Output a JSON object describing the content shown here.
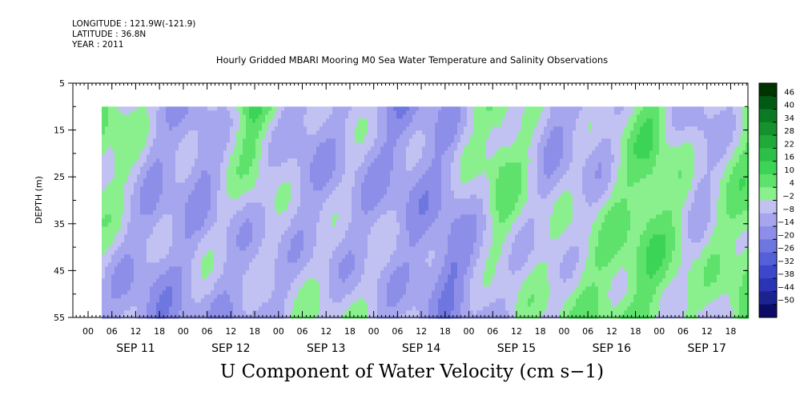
{
  "header": {
    "longitude": "LONGITUDE : 121.9W(-121.9)",
    "latitude": "LATITUDE : 36.8N",
    "year": "YEAR : 2011"
  },
  "chart_data": {
    "type": "heatmap",
    "title": "Hourly Gridded MBARI Mooring M0 Sea Water Temperature and Salinity Observations",
    "variable_title": "U Component of Water Velocity (cm s−1)",
    "ylabel": "DEPTH (m)",
    "ylim": [
      5,
      55
    ],
    "y_inverted": true,
    "y_ticks": [
      "5",
      "15",
      "25",
      "35",
      "45",
      "55"
    ],
    "data_depth_range": [
      10,
      55
    ],
    "x_hour_ticks": [
      "00",
      "06",
      "12",
      "18",
      "00",
      "06",
      "12",
      "18",
      "00",
      "06",
      "12",
      "18",
      "00",
      "06",
      "12",
      "18",
      "00",
      "06",
      "12",
      "18",
      "00",
      "06",
      "12",
      "18",
      "00",
      "06",
      "12",
      "18"
    ],
    "x_day_labels": [
      "SEP 11",
      "SEP 12",
      "SEP 13",
      "SEP 14",
      "SEP 15",
      "SEP 16",
      "SEP 17"
    ],
    "colorbar_levels": [
      "46",
      "40",
      "34",
      "28",
      "22",
      "16",
      "10",
      "4",
      "−2",
      "−8",
      "−14",
      "−20",
      "−26",
      "−32",
      "−38",
      "−44",
      "−50"
    ],
    "colorbar_colors": [
      "#003300",
      "#005a14",
      "#0a7a24",
      "#15922e",
      "#20aa3a",
      "#2cc048",
      "#3cd456",
      "#5ee26c",
      "#8af08e",
      "#c2c2f2",
      "#a6a6ee",
      "#8c8ee8",
      "#6f76e0",
      "#5560d8",
      "#3c48cc",
      "#2a34b4",
      "#1c2290",
      "#0c0c66"
    ],
    "u_velocity_samples_cm_s": {
      "depths_m": [
        10,
        20,
        30,
        40,
        50
      ],
      "days": [
        "SEP 11 00",
        "SEP 11 12",
        "SEP 12 00",
        "SEP 12 12",
        "SEP 13 00",
        "SEP 13 12",
        "SEP 14 00",
        "SEP 14 12",
        "SEP 15 00",
        "SEP 15 12",
        "SEP 16 00",
        "SEP 16 12",
        "SEP 17 00",
        "SEP 17 12"
      ],
      "values": [
        [
          6,
          -8,
          -12,
          10,
          -14,
          -6,
          -16,
          -10,
          4,
          -12,
          -10,
          6,
          -12,
          2
        ],
        [
          4,
          -10,
          -14,
          2,
          -12,
          -8,
          -14,
          -12,
          6,
          -10,
          -8,
          8,
          -10,
          4
        ],
        [
          -2,
          -12,
          -10,
          -6,
          -10,
          -10,
          -12,
          -14,
          2,
          -8,
          -2,
          8,
          -6,
          6
        ],
        [
          -6,
          -14,
          -8,
          -10,
          -6,
          -8,
          -10,
          -20,
          -4,
          -4,
          2,
          6,
          -4,
          6
        ],
        [
          -8,
          -16,
          -10,
          -12,
          -4,
          -4,
          -8,
          -14,
          -6,
          -2,
          4,
          4,
          -4,
          4
        ]
      ]
    }
  }
}
